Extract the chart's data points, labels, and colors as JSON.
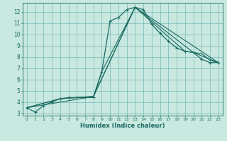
{
  "title": "",
  "xlabel": "Humidex (Indice chaleur)",
  "bg_color": "#c8e8e0",
  "grid_color": "#7ab8b8",
  "line_color": "#1a6b60",
  "xlim": [
    -0.5,
    23.5
  ],
  "ylim": [
    2.8,
    12.8
  ],
  "xticks": [
    0,
    1,
    2,
    3,
    4,
    5,
    6,
    7,
    8,
    9,
    10,
    11,
    12,
    13,
    14,
    15,
    16,
    17,
    18,
    19,
    20,
    21,
    22,
    23
  ],
  "yticks": [
    3,
    4,
    5,
    6,
    7,
    8,
    9,
    10,
    11,
    12
  ],
  "series1": [
    [
      0,
      3.5
    ],
    [
      1,
      3.1
    ],
    [
      2,
      3.7
    ],
    [
      3,
      4.0
    ],
    [
      4,
      4.3
    ],
    [
      5,
      4.4
    ],
    [
      6,
      4.4
    ],
    [
      7,
      4.4
    ],
    [
      8,
      4.4
    ],
    [
      9,
      6.7
    ],
    [
      10,
      11.2
    ],
    [
      11,
      11.5
    ],
    [
      12,
      12.2
    ],
    [
      13,
      12.4
    ],
    [
      14,
      12.2
    ],
    [
      15,
      10.9
    ],
    [
      16,
      10.1
    ],
    [
      17,
      9.4
    ],
    [
      18,
      8.8
    ],
    [
      19,
      8.5
    ],
    [
      20,
      8.4
    ],
    [
      21,
      7.8
    ],
    [
      22,
      7.5
    ],
    [
      23,
      7.5
    ]
  ],
  "series2": [
    [
      0,
      3.5
    ],
    [
      4,
      4.3
    ],
    [
      8,
      4.5
    ],
    [
      9,
      6.7
    ],
    [
      13,
      12.4
    ],
    [
      19,
      8.5
    ],
    [
      20,
      8.4
    ],
    [
      21,
      8.3
    ],
    [
      22,
      7.7
    ],
    [
      23,
      7.5
    ]
  ],
  "series3": [
    [
      0,
      3.5
    ],
    [
      4,
      4.3
    ],
    [
      8,
      4.5
    ],
    [
      13,
      12.4
    ],
    [
      20,
      8.4
    ],
    [
      23,
      7.5
    ]
  ],
  "series4": [
    [
      0,
      3.5
    ],
    [
      8,
      4.5
    ],
    [
      13,
      12.4
    ],
    [
      23,
      7.5
    ]
  ]
}
